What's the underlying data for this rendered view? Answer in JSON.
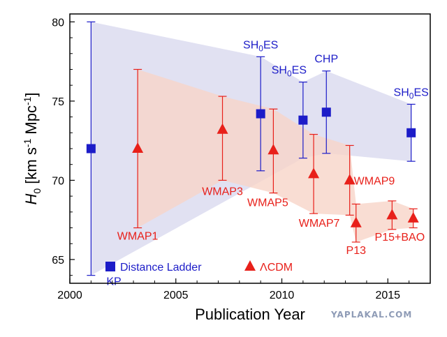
{
  "chart_data": {
    "type": "scatter",
    "xlabel": "Publication Year",
    "ylabel_parts": {
      "main": "H",
      "sub": "0",
      "units": " [km s",
      "exp1": "-1",
      "units2": " Mpc",
      "exp2": "-1",
      "close": "]"
    },
    "xlim": [
      2000,
      2017
    ],
    "ylim": [
      63.5,
      80.5
    ],
    "xticks": [
      2000,
      2005,
      2010,
      2015
    ],
    "yticks": [
      65,
      70,
      75,
      80
    ],
    "grid": false,
    "legend_position": "bottom-left",
    "legend": [
      {
        "name": "Distance Ladder",
        "marker": "square",
        "color": "#1c1cc8"
      },
      {
        "name": "ΛCDM",
        "marker": "triangle",
        "color": "#e8201a"
      }
    ],
    "series": [
      {
        "name": "Distance Ladder",
        "color": "#1c1cc8",
        "marker": "square",
        "points": [
          {
            "label": "KP",
            "x": 2001.0,
            "y": 72.0,
            "ylo": 64.0,
            "yhi": 80.0
          },
          {
            "label": "SH0ES",
            "x": 2009.0,
            "y": 74.2,
            "ylo": 70.6,
            "yhi": 77.8
          },
          {
            "label": "SH0ES",
            "x": 2011.0,
            "y": 73.8,
            "ylo": 71.4,
            "yhi": 76.2
          },
          {
            "label": "CHP",
            "x": 2012.1,
            "y": 74.3,
            "ylo": 71.7,
            "yhi": 76.9
          },
          {
            "label": "SH0ES",
            "x": 2016.1,
            "y": 73.0,
            "ylo": 71.2,
            "yhi": 74.8
          }
        ]
      },
      {
        "name": "ΛCDM",
        "color": "#e8201a",
        "marker": "triangle",
        "points": [
          {
            "label": "WMAP1",
            "x": 2003.2,
            "y": 72.0,
            "ylo": 67.0,
            "yhi": 77.0
          },
          {
            "label": "WMAP3",
            "x": 2007.2,
            "y": 73.2,
            "ylo": 70.0,
            "yhi": 75.3
          },
          {
            "label": "WMAP5",
            "x": 2009.6,
            "y": 71.9,
            "ylo": 69.2,
            "yhi": 74.5
          },
          {
            "label": "WMAP7",
            "x": 2011.5,
            "y": 70.4,
            "ylo": 67.9,
            "yhi": 72.9
          },
          {
            "label": "WMAP9",
            "x": 2013.2,
            "y": 70.0,
            "ylo": 67.8,
            "yhi": 72.2
          },
          {
            "label": "P13",
            "x": 2013.5,
            "y": 67.3,
            "ylo": 66.1,
            "yhi": 68.5
          },
          {
            "label": "P15+BAO",
            "x": 2015.2,
            "y": 67.8,
            "ylo": 66.9,
            "yhi": 68.7
          },
          {
            "label": "",
            "x": 2016.2,
            "y": 67.6,
            "ylo": 67.0,
            "yhi": 68.2
          }
        ]
      }
    ],
    "bands": [
      {
        "name": "Distance Ladder",
        "color": "#dcdcf0",
        "polygon": [
          [
            2001.0,
            80.0
          ],
          [
            2009.0,
            77.8
          ],
          [
            2011.0,
            76.2
          ],
          [
            2012.1,
            76.9
          ],
          [
            2016.1,
            74.8
          ],
          [
            2016.1,
            71.2
          ],
          [
            2012.1,
            71.7
          ],
          [
            2011.0,
            71.4
          ],
          [
            2001.0,
            64.0
          ]
        ]
      },
      {
        "name": "ΛCDM",
        "color": "#f8d4c8",
        "polygon": [
          [
            2003.2,
            77.0
          ],
          [
            2007.2,
            75.3
          ],
          [
            2009.6,
            74.5
          ],
          [
            2011.5,
            72.9
          ],
          [
            2013.2,
            72.2
          ],
          [
            2013.5,
            68.5
          ],
          [
            2015.2,
            68.7
          ],
          [
            2016.2,
            68.2
          ],
          [
            2016.2,
            67.0
          ],
          [
            2015.2,
            66.9
          ],
          [
            2013.5,
            66.1
          ],
          [
            2013.2,
            67.8
          ],
          [
            2011.5,
            67.9
          ],
          [
            2009.6,
            69.2
          ],
          [
            2007.2,
            70.0
          ],
          [
            2003.2,
            67.0
          ]
        ]
      }
    ]
  },
  "watermark": "YAPLAKAL.COM"
}
